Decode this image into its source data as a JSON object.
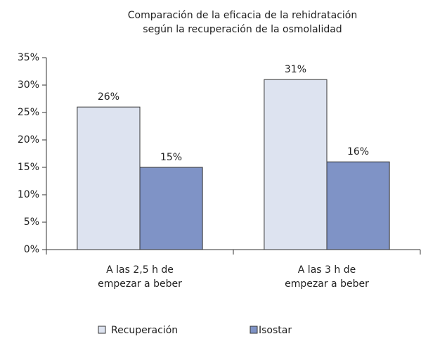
{
  "chart_data": {
    "type": "bar",
    "title": [
      "Comparación de la eficacia de la rehidratación",
      "según la recuperación de la osmolalidad"
    ],
    "categories": [
      [
        "A las 2,5 h de",
        "empezar a beber"
      ],
      [
        "A las 3 h de",
        "empezar a beber"
      ]
    ],
    "series": [
      {
        "name": "Recuperación",
        "color": "#dde3f0",
        "values": [
          26,
          31
        ],
        "value_labels": [
          "26%",
          "31%"
        ]
      },
      {
        "name": "Isostar",
        "color": "#7f93c6",
        "values": [
          15,
          16
        ],
        "value_labels": [
          "15%",
          "16%"
        ]
      }
    ],
    "ylim": [
      0,
      35
    ],
    "yticks": [
      {
        "value": 0,
        "label": "0%"
      },
      {
        "value": 5,
        "label": "5%"
      },
      {
        "value": 10,
        "label": "10%"
      },
      {
        "value": 15,
        "label": "15%"
      },
      {
        "value": 20,
        "label": "20%"
      },
      {
        "value": 25,
        "label": "25%"
      },
      {
        "value": 30,
        "label": "30%"
      },
      {
        "value": 35,
        "label": "35%"
      }
    ],
    "grid": false,
    "legend": "bottom"
  }
}
